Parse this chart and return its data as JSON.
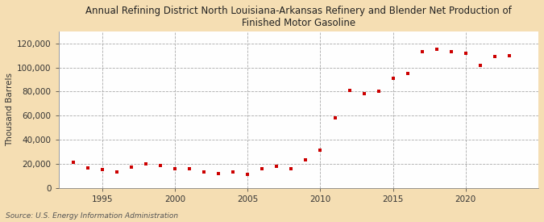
{
  "title_line1": "Annual Refining District North Louisiana-Arkansas Refinery and Blender Net Production of",
  "title_line2": "Finished Motor Gasoline",
  "ylabel": "Thousand Barrels",
  "source": "Source: U.S. Energy Information Administration",
  "outer_bg": "#f5deb3",
  "plot_bg": "#fefefe",
  "years": [
    1993,
    1994,
    1995,
    1996,
    1997,
    1998,
    1999,
    2000,
    2001,
    2002,
    2003,
    2004,
    2005,
    2006,
    2007,
    2008,
    2009,
    2010,
    2011,
    2012,
    2013,
    2014,
    2015,
    2016,
    2017,
    2018,
    2019,
    2020,
    2021,
    2022,
    2023
  ],
  "values": [
    21000,
    16500,
    15000,
    13000,
    17000,
    20000,
    18500,
    16000,
    15500,
    13000,
    12000,
    13000,
    11000,
    16000,
    17500,
    16000,
    23000,
    31000,
    58000,
    81000,
    78000,
    80500,
    91000,
    95000,
    113000,
    115000,
    113000,
    112000,
    101500,
    109000,
    110000
  ],
  "marker_color": "#cc0000",
  "marker_size": 5,
  "ylim": [
    0,
    130000
  ],
  "yticks": [
    0,
    20000,
    40000,
    60000,
    80000,
    100000,
    120000
  ],
  "xlim": [
    1992,
    2025
  ],
  "xticks": [
    1995,
    2000,
    2005,
    2010,
    2015,
    2020
  ],
  "grid_color": "#aaaaaa",
  "title_fontsize": 8.5,
  "ylabel_fontsize": 7.5,
  "tick_fontsize": 7.5,
  "source_fontsize": 6.5
}
